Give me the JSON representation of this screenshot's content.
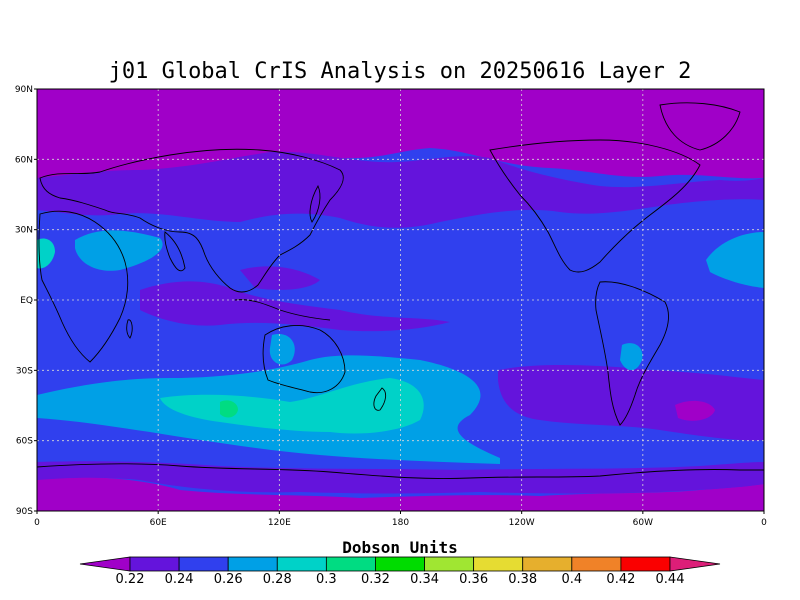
{
  "title": "j01 Global CrIS Analysis on 20250616 Layer 2",
  "map": {
    "lat_labels": [
      "90N",
      "60N",
      "30N",
      "EQ",
      "30S",
      "60S",
      "90S"
    ],
    "lon_labels": [
      "0",
      "60E",
      "120E",
      "180",
      "120W",
      "60W",
      "0"
    ],
    "grid": "dotted",
    "background_level_color": "#3040ee"
  },
  "colorbar": {
    "title": "Dobson Units",
    "labels": [
      "0.22",
      "0.24",
      "0.26",
      "0.28",
      "0.3",
      "0.32",
      "0.34",
      "0.36",
      "0.38",
      "0.4",
      "0.42",
      "0.44"
    ],
    "colors": [
      "#a000c8",
      "#6414dc",
      "#3040ee",
      "#00a0e6",
      "#00d2c8",
      "#00dc82",
      "#00dc00",
      "#a0e632",
      "#e6dc32",
      "#e6af2d",
      "#f08228",
      "#fa0000",
      "#dc1e78"
    ]
  }
}
